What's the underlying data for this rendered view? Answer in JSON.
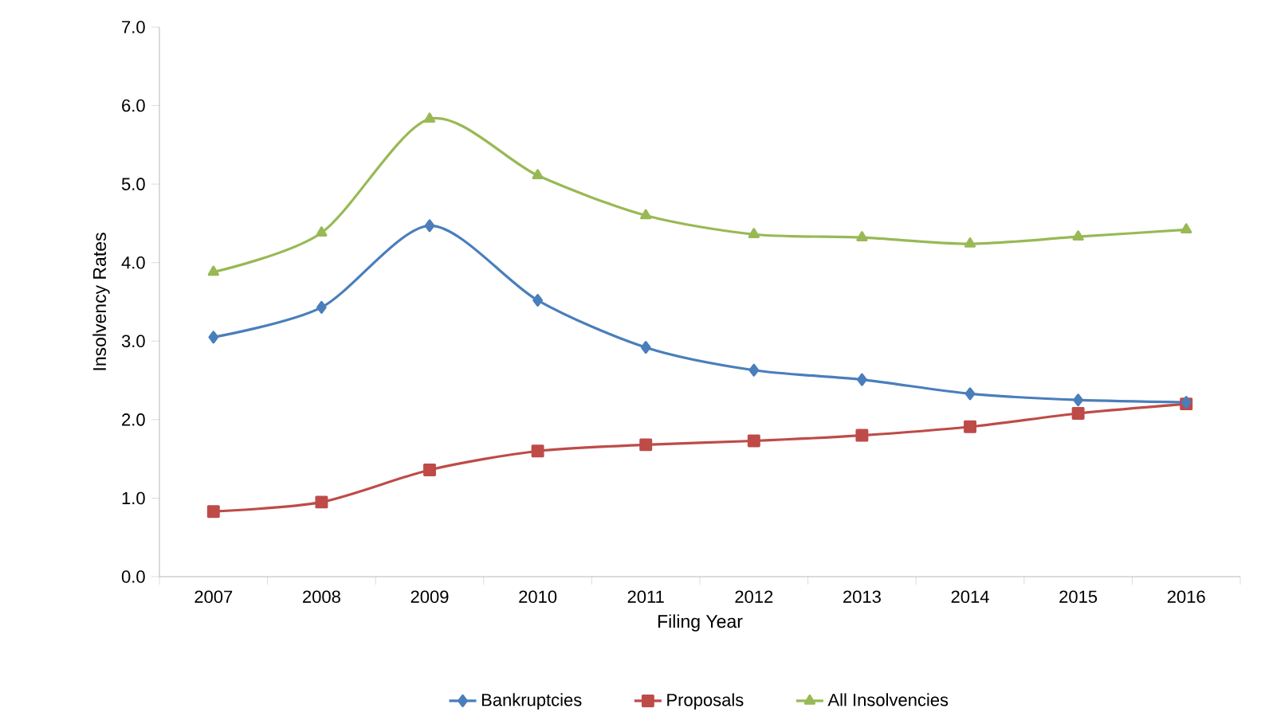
{
  "chart_data": {
    "type": "line",
    "xlabel": "Filing Year",
    "ylabel": "Insolvency Rates",
    "categories": [
      "2007",
      "2008",
      "2009",
      "2010",
      "2011",
      "2012",
      "2013",
      "2014",
      "2015",
      "2016"
    ],
    "series": [
      {
        "name": "Bankruptcies",
        "color": "#4a7ebb",
        "marker": "diamond",
        "values": [
          3.05,
          3.43,
          4.47,
          3.52,
          2.92,
          2.63,
          2.51,
          2.33,
          2.25,
          2.22
        ]
      },
      {
        "name": "Proposals",
        "color": "#be4b48",
        "marker": "square",
        "values": [
          0.83,
          0.95,
          1.36,
          1.6,
          1.68,
          1.73,
          1.8,
          1.91,
          2.08,
          2.2
        ]
      },
      {
        "name": "All Insolvencies",
        "color": "#98b954",
        "marker": "triangle",
        "values": [
          3.88,
          4.38,
          5.83,
          5.11,
          4.6,
          4.36,
          4.32,
          4.24,
          4.33,
          4.42
        ]
      }
    ],
    "ylim": [
      0,
      7
    ],
    "yticks": [
      {
        "value": 0,
        "label": "0.0"
      },
      {
        "value": 1,
        "label": "1.0"
      },
      {
        "value": 2,
        "label": "2.0"
      },
      {
        "value": 3,
        "label": "3.0"
      },
      {
        "value": 4,
        "label": "4.0"
      },
      {
        "value": 5,
        "label": "5.0"
      },
      {
        "value": 6,
        "label": "6.0"
      },
      {
        "value": 7,
        "label": "7.0"
      }
    ],
    "legend": "bottom",
    "line_style": "solid",
    "grid": false
  }
}
